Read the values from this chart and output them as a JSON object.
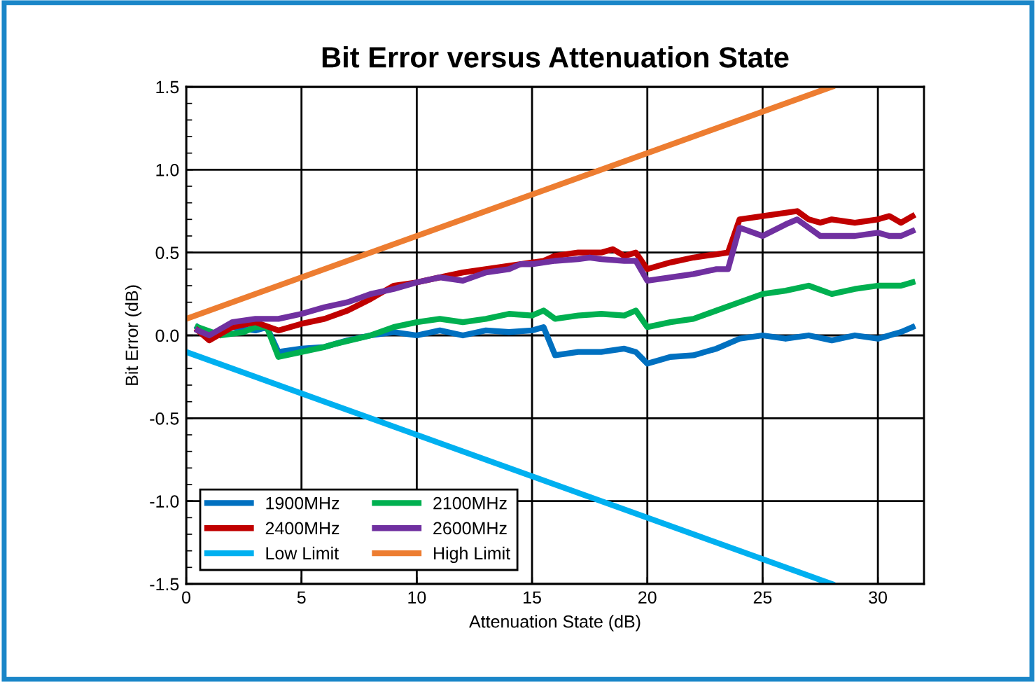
{
  "chart_data": {
    "type": "line",
    "title": "Bit Error versus Attenuation State",
    "xlabel": "Attenuation State (dB)",
    "ylabel": "Bit Error (dB)",
    "xlim": [
      0,
      32
    ],
    "xticks": [
      0,
      5,
      10,
      15,
      20,
      25,
      30
    ],
    "ylim": [
      -1.5,
      1.5
    ],
    "yticks": [
      -1.5,
      {
        "value": -1,
        "label": "-1.0"
      },
      -0.5,
      {
        "value": 0,
        "label": "0.0"
      },
      0.5,
      {
        "value": 1,
        "label": "1.0"
      },
      1.5
    ],
    "grid": true,
    "legend": "bottom left",
    "marker": "none",
    "line_style": "solid",
    "series": [
      {
        "name": "1900MHz",
        "color": "#0070c0",
        "x": [
          0.5,
          1,
          2,
          3,
          3.5,
          4,
          5,
          6,
          7,
          8,
          9,
          10,
          11,
          12,
          13,
          14,
          15,
          15.5,
          16,
          17,
          18,
          19,
          19.5,
          20,
          21,
          22,
          23,
          24,
          25,
          26,
          27,
          28,
          29,
          30,
          31,
          31.5
        ],
        "values": [
          0.05,
          0,
          0.05,
          0.03,
          0.05,
          -0.1,
          -0.08,
          -0.07,
          -0.03,
          0,
          0.02,
          0,
          0.03,
          0,
          0.03,
          0.02,
          0.03,
          0.05,
          -0.12,
          -0.1,
          -0.1,
          -0.08,
          -0.1,
          -0.17,
          -0.13,
          -0.12,
          -0.08,
          -0.02,
          0,
          -0.02,
          0,
          -0.03,
          0,
          -0.02,
          0.02,
          0.05
        ]
      },
      {
        "name": "2100MHz",
        "color": "#00b050",
        "x": [
          0.5,
          1.5,
          2.5,
          3,
          3.5,
          4,
          5,
          6,
          6.5,
          8,
          9,
          10,
          11,
          12,
          13,
          14,
          15,
          15.5,
          16,
          17,
          18,
          19,
          19.5,
          20,
          21,
          22,
          23,
          24,
          25,
          26,
          27,
          28,
          29,
          30,
          31,
          31.5
        ],
        "values": [
          0.05,
          0,
          0.02,
          0.05,
          0.05,
          -0.13,
          -0.1,
          -0.07,
          -0.05,
          0,
          0.05,
          0.08,
          0.1,
          0.08,
          0.1,
          0.13,
          0.12,
          0.15,
          0.1,
          0.12,
          0.13,
          0.12,
          0.15,
          0.05,
          0.08,
          0.1,
          0.15,
          0.2,
          0.25,
          0.27,
          0.3,
          0.25,
          0.28,
          0.3,
          0.3,
          0.32
        ]
      },
      {
        "name": "2400MHz",
        "color": "#c00000",
        "x": [
          0.5,
          1,
          2,
          3,
          4,
          5,
          6,
          7,
          8,
          9,
          10,
          11,
          12,
          13,
          14,
          15,
          15.5,
          16,
          17,
          18,
          18.5,
          19,
          19.5,
          20,
          21,
          22,
          23,
          23.5,
          24,
          25,
          26,
          26.5,
          27,
          27.5,
          28,
          29,
          30,
          30.5,
          31,
          31.5
        ],
        "values": [
          0.03,
          -0.03,
          0.05,
          0.08,
          0.03,
          0.07,
          0.1,
          0.15,
          0.22,
          0.3,
          0.32,
          0.35,
          0.38,
          0.4,
          0.42,
          0.44,
          0.45,
          0.48,
          0.5,
          0.5,
          0.52,
          0.48,
          0.5,
          0.4,
          0.44,
          0.47,
          0.49,
          0.5,
          0.7,
          0.72,
          0.74,
          0.75,
          0.7,
          0.68,
          0.7,
          0.68,
          0.7,
          0.72,
          0.68,
          0.72
        ]
      },
      {
        "name": "2600MHz",
        "color": "#7030a0",
        "x": [
          0.5,
          1,
          2,
          3,
          4,
          5,
          6,
          7,
          8,
          9,
          9.5,
          10,
          11,
          12,
          13,
          14,
          14.5,
          15,
          16,
          17,
          17.5,
          18,
          19,
          19.5,
          20,
          21,
          22,
          23,
          23.5,
          24,
          25,
          26,
          26.5,
          27,
          27.5,
          28,
          29,
          30,
          30.5,
          31,
          31.5
        ],
        "values": [
          0.03,
          0,
          0.08,
          0.1,
          0.1,
          0.13,
          0.17,
          0.2,
          0.25,
          0.28,
          0.3,
          0.32,
          0.35,
          0.33,
          0.38,
          0.4,
          0.43,
          0.43,
          0.45,
          0.46,
          0.47,
          0.46,
          0.45,
          0.45,
          0.33,
          0.35,
          0.37,
          0.4,
          0.4,
          0.65,
          0.6,
          0.67,
          0.7,
          0.65,
          0.6,
          0.6,
          0.6,
          0.62,
          0.6,
          0.6,
          0.63
        ]
      },
      {
        "name": "Low Limit",
        "color": "#00b0f0",
        "x": [
          0,
          28
        ],
        "values": [
          -0.1,
          -1.5
        ]
      },
      {
        "name": "High Limit",
        "color": "#ed7d31",
        "x": [
          0,
          28
        ],
        "values": [
          0.1,
          1.5
        ]
      }
    ]
  }
}
